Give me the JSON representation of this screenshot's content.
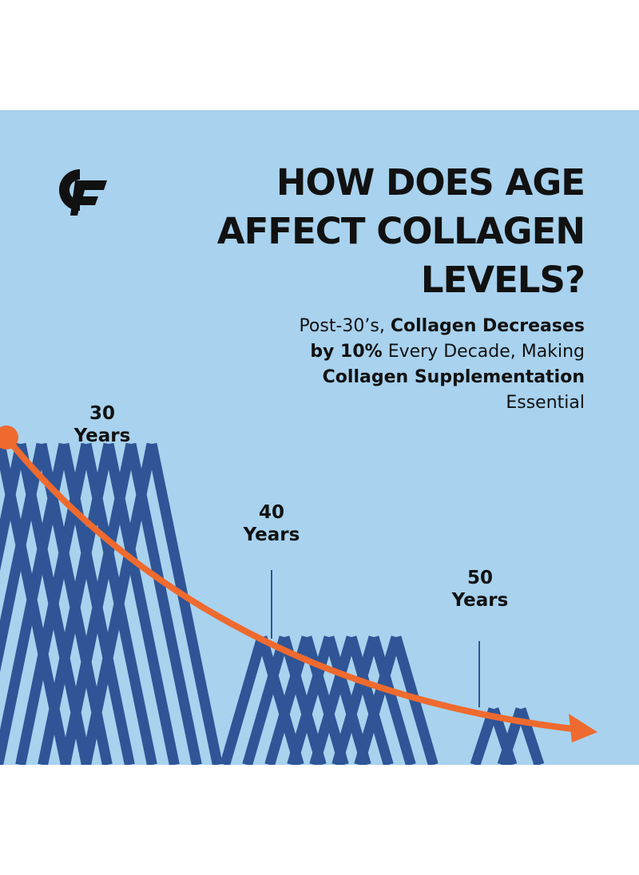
{
  "headline": {
    "line1": "HOW DOES AGE",
    "line2": "AFFECT COLLAGEN",
    "line3": "LEVELS?"
  },
  "subtext": {
    "line1_a": "Post-30’s, ",
    "line1_b": "Collagen Decreases",
    "line2_a": "by 10%",
    "line2_b": " Every Decade, Making",
    "line3": "Collagen Supplementation",
    "line4": "Essential"
  },
  "markers": [
    {
      "number": "30",
      "unit": "Years"
    },
    {
      "number": "40",
      "unit": "Years"
    },
    {
      "number": "50",
      "unit": "Years"
    }
  ],
  "colors": {
    "background": "#a8d2ee",
    "text": "#111111",
    "pattern": "#2f5597",
    "curve": "#ef6a2e"
  },
  "icons": {
    "logo": "cf-logo-icon",
    "arrow": "arrow-right-icon"
  }
}
